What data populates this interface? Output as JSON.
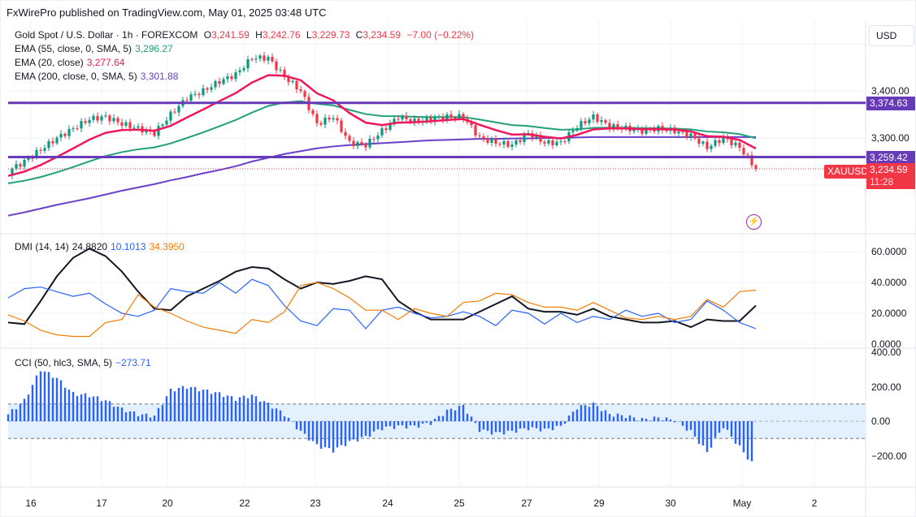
{
  "header": {
    "published": "FxWirePro published on TradingView.com, May 01, 2025 03:48 UTC"
  },
  "legend": {
    "symbol": "Gold Spot / U.S. Dollar · 1h · FOREXCOM",
    "o_label": "O",
    "o": "3,241.59",
    "h_label": "H",
    "h": "3,242.76",
    "l_label": "L",
    "l": "3,229.73",
    "c_label": "C",
    "c": "3,234.59",
    "change": "−7.00 (−0.22%)",
    "ema55": {
      "label": "EMA (55, close, 0, SMA, 5)",
      "value": "3,296.27"
    },
    "ema20": {
      "label": "EMA (20, close)",
      "value": "3,277.64"
    },
    "ema200": {
      "label": "EMA (200, close, 0, SMA, 5)",
      "value": "3,301.88"
    },
    "dmi": {
      "label": "DMI (14, 14)",
      "adx": "24.8820",
      "plus": "10.1013",
      "minus": "34.3950"
    },
    "cci": {
      "label": "CCI (50, hlc3, SMA, 5)",
      "value": "−273.71"
    }
  },
  "currency_button": "USD",
  "tags": {
    "upper_line": "3,374.63",
    "lower_line": "3,259.42",
    "symbol": "XAUUSD",
    "price": "3,234.59",
    "countdown": "11:28"
  },
  "colors": {
    "up": "#089981",
    "down": "#f23645",
    "ema20": "#f0185a",
    "ema55": "#22a07a",
    "ema200": "#6a3fc9",
    "level": "#673ab7",
    "adx": "#131722",
    "plus_di": "#2962ff",
    "minus_di": "#f57c00",
    "cci": "#2962ff",
    "band": "#e3f0fd"
  },
  "chart_data": [
    {
      "type": "candlestick",
      "title": "Gold Spot / U.S. Dollar",
      "ylim": [
        3136,
        3510
      ],
      "y_ticks": [
        "3,400.00",
        "3,300.00"
      ],
      "x_ticks": [
        "16",
        "17",
        "20",
        "22",
        "23",
        "24",
        "25",
        "27",
        "29",
        "30",
        "May",
        "2"
      ],
      "close": [
        3230,
        3250,
        3275,
        3300,
        3320,
        3340,
        3345,
        3330,
        3320,
        3310,
        3350,
        3385,
        3400,
        3420,
        3435,
        3470,
        3470,
        3430,
        3400,
        3330,
        3345,
        3290,
        3285,
        3315,
        3345,
        3335,
        3340,
        3345,
        3345,
        3300,
        3290,
        3285,
        3310,
        3290,
        3290,
        3325,
        3345,
        3325,
        3320,
        3315,
        3320,
        3315,
        3305,
        3280,
        3300,
        3280,
        3235
      ],
      "ema200": [
        3135,
        3142,
        3150,
        3158,
        3165,
        3172,
        3180,
        3188,
        3195,
        3202,
        3210,
        3217,
        3225,
        3232,
        3240,
        3250,
        3258,
        3266,
        3272,
        3278,
        3282,
        3285,
        3287,
        3289,
        3291,
        3293,
        3295,
        3296,
        3297,
        3298,
        3298,
        3299,
        3299,
        3300,
        3300,
        3301,
        3302,
        3302,
        3302,
        3302,
        3302,
        3302,
        3302,
        3302,
        3302,
        3302,
        3302
      ],
      "horizontal_levels": [
        3374.63,
        3259.42
      ]
    },
    {
      "type": "line",
      "title": "DMI (14, 14)",
      "ylim": [
        0,
        68
      ],
      "y_ticks": [
        "60.0000",
        "40.0000",
        "20.0000",
        "0.0000"
      ],
      "series": [
        {
          "name": "ADX",
          "values": [
            14,
            13,
            28,
            44,
            56,
            62,
            57,
            47,
            34,
            23,
            22,
            31,
            36,
            41,
            47,
            50,
            49,
            42,
            36,
            40,
            39,
            41,
            44,
            42,
            28,
            21,
            16,
            16,
            16,
            21,
            26,
            31,
            23,
            21,
            21,
            19,
            23,
            18,
            16,
            14,
            14,
            15,
            11,
            16,
            15,
            15,
            25
          ]
        },
        {
          "name": "+DI",
          "values": [
            30,
            36,
            37,
            34,
            31,
            33,
            26,
            20,
            18,
            22,
            36,
            34,
            33,
            40,
            33,
            42,
            38,
            25,
            15,
            12,
            23,
            22,
            10,
            22,
            24,
            20,
            17,
            18,
            21,
            18,
            12,
            22,
            20,
            13,
            20,
            14,
            18,
            16,
            22,
            18,
            20,
            14,
            16,
            28,
            22,
            14,
            10
          ]
        },
        {
          "name": "-DI",
          "values": [
            19,
            15,
            9,
            6,
            5,
            5,
            14,
            16,
            32,
            24,
            20,
            15,
            11,
            9,
            7,
            16,
            14,
            21,
            38,
            40,
            36,
            30,
            22,
            22,
            16,
            23,
            20,
            18,
            27,
            28,
            33,
            32,
            27,
            24,
            24,
            22,
            27,
            22,
            17,
            16,
            18,
            16,
            18,
            29,
            24,
            34,
            35
          ]
        }
      ]
    },
    {
      "type": "bar",
      "title": "CCI (50, hlc3, SMA, 5)",
      "ylim": [
        -400,
        400
      ],
      "y_ticks": [
        "400.00",
        "200.00",
        "0.00",
        "−200.00"
      ],
      "band": [
        -100,
        100
      ],
      "values": [
        40,
        120,
        300,
        250,
        160,
        150,
        120,
        70,
        40,
        30,
        180,
        200,
        180,
        160,
        130,
        150,
        100,
        40,
        -60,
        -140,
        -170,
        -120,
        -90,
        -40,
        -30,
        -30,
        -10,
        60,
        90,
        -50,
        -70,
        -60,
        -40,
        -50,
        -30,
        80,
        100,
        40,
        30,
        10,
        20,
        5,
        -60,
        -180,
        -30,
        -150,
        -273
      ]
    }
  ]
}
